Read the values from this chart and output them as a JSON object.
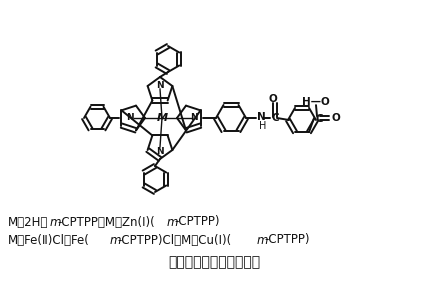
{
  "title": "卟啉及其金属配合物结构",
  "line1_parts": [
    {
      "text": "M＝2H，",
      "italic": false
    },
    {
      "text": "m",
      "italic": true
    },
    {
      "text": "-CPTPP，M＝Zn(Ⅰ)(",
      "italic": false
    },
    {
      "text": "m",
      "italic": true
    },
    {
      "text": "-CPTPP)",
      "italic": false
    }
  ],
  "line2_parts": [
    {
      "text": "M＝Fe(Ⅱ)Cl，Fe(",
      "italic": false
    },
    {
      "text": "m",
      "italic": true
    },
    {
      "text": "-CPTPP)Cl，M＝Cu(Ⅰ)(",
      "italic": false
    },
    {
      "text": "m",
      "italic": true
    },
    {
      "text": "-CPTPP)",
      "italic": false
    }
  ],
  "bg_color": "#ffffff",
  "text_color": "#111111",
  "fig_width": 4.29,
  "fig_height": 2.98,
  "dpi": 100
}
